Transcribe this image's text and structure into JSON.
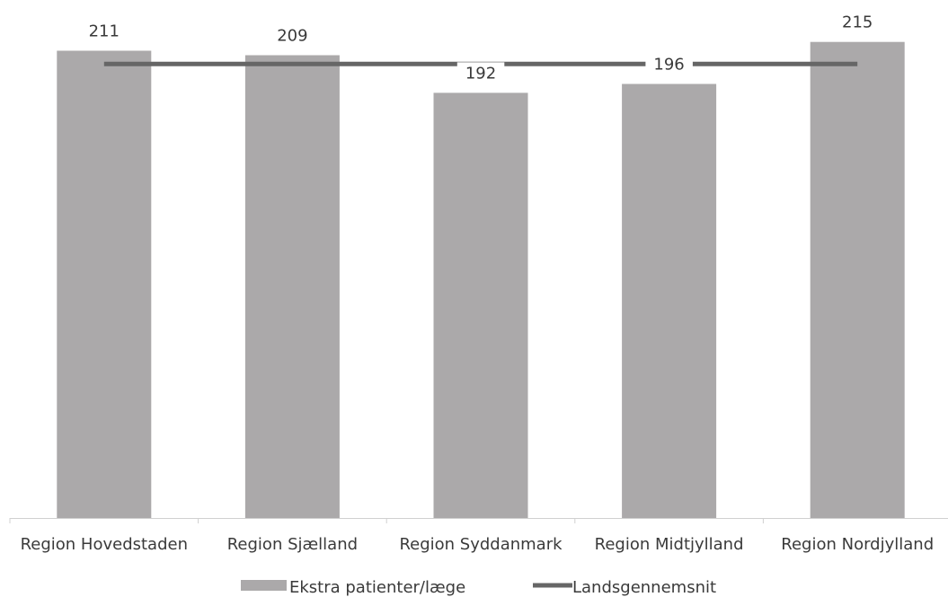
{
  "chart_data": {
    "type": "bar",
    "categories": [
      "Region Hovedstaden",
      "Region Sjælland",
      "Region Syddanmark",
      "Region Midtjylland",
      "Region Nordjylland"
    ],
    "series": [
      {
        "name": "Ekstra patienter/læge",
        "type": "bar",
        "values": [
          211,
          209,
          192,
          196,
          215
        ]
      },
      {
        "name": "Landsgennemsnit",
        "type": "line",
        "values": [
          205,
          205,
          205,
          205,
          205
        ]
      }
    ],
    "data_labels": [
      {
        "series": "Ekstra patienter/læge",
        "index": 0,
        "text": "211"
      },
      {
        "series": "Ekstra patienter/læge",
        "index": 1,
        "text": "209"
      },
      {
        "series": "Ekstra patienter/læge",
        "index": 2,
        "text": "192"
      },
      {
        "series": "Ekstra patienter/læge",
        "index": 3,
        "text": "196"
      },
      {
        "series": "Ekstra patienter/læge",
        "index": 4,
        "text": "215"
      }
    ],
    "ylim": [
      0,
      225
    ],
    "grid": false,
    "legend_position": "bottom",
    "colors": {
      "bar": "#ABA9AA",
      "line": "#666666",
      "axis": "#d0d0d0"
    }
  }
}
